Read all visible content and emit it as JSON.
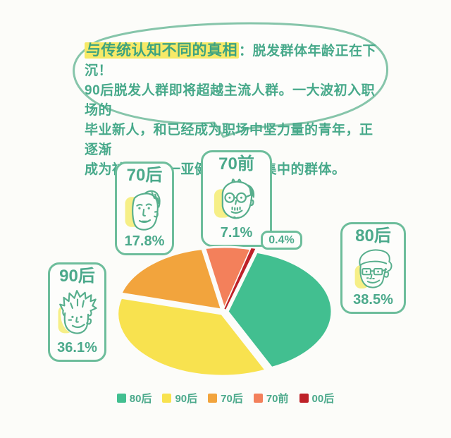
{
  "bubble": {
    "highlight": "与传统认知不同的真相",
    "line1_rest": "：脱发群体年龄正在下沉！",
    "line2": "90后脱发人群即将超越主流人群。一大波初入职场的",
    "line3": "毕业新人，和已经成为职场中坚力量的青年，正逐渐",
    "line4": "成为被脱发这一亚健康困扰最集中的群体。"
  },
  "callouts": [
    {
      "label": "70后",
      "percent": "17.8%",
      "icon": "balding-man-face-icon"
    },
    {
      "label": "70前",
      "percent": "7.1%",
      "icon": "old-man-glasses-face-icon"
    },
    {
      "label": "80后",
      "percent": "38.5%",
      "icon": "young-man-glasses-face-icon"
    },
    {
      "label": "90后",
      "percent": "36.1%",
      "icon": "young-man-messy-hair-face-icon"
    }
  ],
  "mini_label": {
    "text": "0.4%"
  },
  "chart_data": {
    "type": "pie",
    "slices": [
      {
        "label": "80后",
        "value": 38.5,
        "color": "#42BF90"
      },
      {
        "label": "90后",
        "value": 36.1,
        "color": "#F8E24F"
      },
      {
        "label": "70后",
        "value": 17.8,
        "color": "#F2A43D"
      },
      {
        "label": "70前",
        "value": 7.1,
        "color": "#F3805B"
      },
      {
        "label": "00后",
        "value": 0.4,
        "color": "#BE2128"
      }
    ],
    "legend_order": [
      "80后",
      "90后",
      "70后",
      "70前",
      "00后"
    ],
    "draw_order": [
      "80后",
      "00后",
      "70前",
      "70后",
      "90后"
    ],
    "start_angle_deg": -65,
    "direction": "ccw",
    "shape": "ellipse-exploded",
    "legend_position": "bottom"
  },
  "colors": {
    "background": "#FCFCF9",
    "text_green": "#47A98A",
    "box_border_green": "#6DBD9B",
    "bubble_border_green": "#86C5AA",
    "highlight_yellow": "#F6E967",
    "face_highlight_yellow": "#F5EC72"
  }
}
